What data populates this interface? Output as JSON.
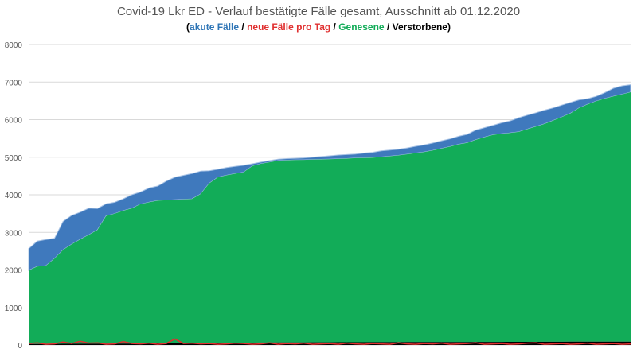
{
  "title": "Covid-19 Lkr ED - Verlauf bestätigte Fälle gesamt, Ausschnitt ab 01.12.2020",
  "legend": {
    "open": "(",
    "akute": "akute Fälle",
    "neue": "neue Fälle pro Tag",
    "genesene": "Genesene",
    "verstorbene": "Verstorbene",
    "sep": " / ",
    "close": ")"
  },
  "colors": {
    "akute": "#3f79bd",
    "neue": "#e03030",
    "genesene": "#12ac58",
    "verstorbene": "#000000",
    "grid": "#d9d9d9",
    "title": "#555555"
  },
  "chart_data": {
    "type": "area",
    "stacked": true,
    "ylim": [
      0,
      8000
    ],
    "yticks": [
      "0",
      "1000",
      "2000",
      "3000",
      "4000",
      "5000",
      "6000",
      "7000",
      "8000"
    ],
    "x_start": "01.12.2020",
    "grid": true,
    "series": [
      {
        "name": "Verstorbene",
        "color": "#000000",
        "values": [
          28,
          28,
          30,
          30,
          31,
          32,
          33,
          34,
          34,
          35,
          36,
          37,
          38,
          40,
          41,
          43,
          45,
          47,
          48,
          50,
          52,
          54,
          56,
          58,
          60,
          62,
          64,
          65,
          66,
          67,
          68,
          69,
          70,
          71,
          72,
          73,
          74,
          74,
          75,
          75,
          76,
          76,
          77,
          77,
          78,
          78,
          79,
          79,
          80,
          80,
          81,
          81,
          82,
          82,
          83,
          83,
          84,
          84,
          85,
          85,
          86,
          86,
          87,
          88,
          88,
          89,
          90,
          90,
          90,
          90,
          90
        ]
      },
      {
        "name": "Genesene",
        "color": "#12ac58",
        "values": [
          1960,
          2060,
          2080,
          2270,
          2500,
          2650,
          2780,
          2900,
          3030,
          3400,
          3460,
          3540,
          3600,
          3710,
          3760,
          3800,
          3810,
          3820,
          3830,
          3840,
          3970,
          4250,
          4410,
          4460,
          4500,
          4540,
          4700,
          4760,
          4800,
          4840,
          4850,
          4855,
          4860,
          4865,
          4870,
          4875,
          4880,
          4890,
          4900,
          4905,
          4910,
          4930,
          4950,
          4970,
          5000,
          5030,
          5060,
          5100,
          5150,
          5200,
          5260,
          5300,
          5380,
          5450,
          5510,
          5540,
          5560,
          5590,
          5660,
          5730,
          5800,
          5890,
          5980,
          6080,
          6220,
          6320,
          6400,
          6470,
          6530,
          6580,
          6640
        ]
      },
      {
        "name": "akute Fälle",
        "color": "#3f79bd",
        "values": [
          580,
          680,
          700,
          540,
          760,
          770,
          725,
          710,
          570,
          325,
          305,
          315,
          365,
          325,
          380,
          390,
          510,
          600,
          640,
          676,
          608,
          338,
          214,
          206,
          195,
          184,
          61,
          45,
          43,
          42,
          46,
          48,
          51,
          63,
          75,
          90,
          104,
          107,
          111,
          131,
          144,
          164,
          164,
          166,
          169,
          182,
          191,
          198,
          207,
          208,
          217,
          228,
          261,
          255,
          257,
          292,
          324,
          378,
          375,
          369,
          369,
          337,
          320,
          292,
          220,
          150,
          130,
          160,
          217,
          230,
          200
        ]
      },
      {
        "name": "neue Fälle pro Tag",
        "color": "#e03030",
        "values": [
          40,
          60,
          20,
          30,
          80,
          40,
          100,
          50,
          60,
          20,
          30,
          90,
          40,
          30,
          50,
          20,
          40,
          160,
          40,
          50,
          30,
          40,
          20,
          30,
          50,
          40,
          20,
          30,
          60,
          20,
          40,
          30,
          50,
          20,
          30,
          40,
          20,
          50,
          30,
          20,
          40,
          30,
          20,
          60,
          30,
          20,
          40,
          30,
          50,
          20,
          30,
          40,
          60,
          20,
          30,
          40,
          20,
          30,
          50,
          60,
          20,
          30,
          40,
          20,
          30,
          50,
          20,
          30,
          40,
          20,
          30
        ]
      }
    ]
  }
}
